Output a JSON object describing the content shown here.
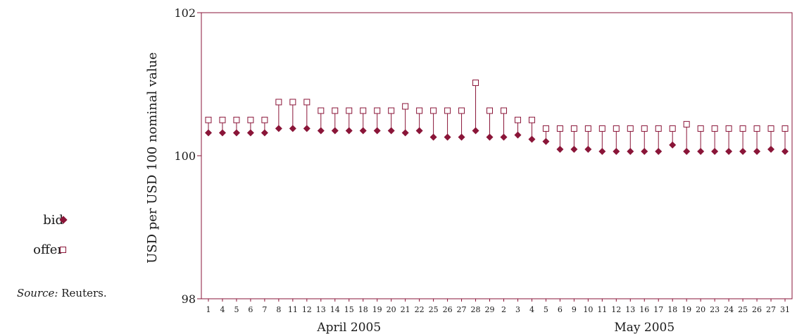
{
  "legend": {
    "bid_label": "bid",
    "offer_label": "offer"
  },
  "source": {
    "prefix": "Source:",
    "text": "Reuters."
  },
  "colors": {
    "series": "#8a1538",
    "axis": "#8a1538",
    "text": "#1a1a1a"
  },
  "chart_data": {
    "type": "scatter",
    "ylabel": "USD per USD 100 nominal value",
    "ylim": [
      98,
      102
    ],
    "yticks": [
      98,
      100,
      102
    ],
    "grid": false,
    "legend_position": "left",
    "categories": [
      "1",
      "4",
      "5",
      "6",
      "7",
      "8",
      "11",
      "12",
      "13",
      "14",
      "15",
      "18",
      "19",
      "20",
      "21",
      "22",
      "25",
      "26",
      "27",
      "28",
      "29",
      "2",
      "3",
      "4",
      "5",
      "6",
      "9",
      "10",
      "11",
      "12",
      "13",
      "16",
      "17",
      "18",
      "19",
      "20",
      "23",
      "24",
      "25",
      "26",
      "27",
      "31"
    ],
    "month_groups": [
      {
        "label": "April 2005",
        "start": 0,
        "end": 20
      },
      {
        "label": "May 2005",
        "start": 21,
        "end": 41
      }
    ],
    "series": [
      {
        "name": "bid",
        "marker": "diamond-filled",
        "values": [
          100.32,
          100.32,
          100.32,
          100.32,
          100.32,
          100.38,
          100.38,
          100.38,
          100.35,
          100.35,
          100.35,
          100.35,
          100.35,
          100.35,
          100.32,
          100.35,
          100.26,
          100.26,
          100.26,
          100.35,
          100.26,
          100.26,
          100.29,
          100.23,
          100.2,
          100.09,
          100.09,
          100.09,
          100.06,
          100.06,
          100.06,
          100.06,
          100.06,
          100.15,
          100.06,
          100.06,
          100.06,
          100.06,
          100.06,
          100.06,
          100.09,
          100.06
        ]
      },
      {
        "name": "offer",
        "marker": "square-open",
        "values": [
          100.5,
          100.5,
          100.5,
          100.5,
          100.5,
          100.75,
          100.75,
          100.75,
          100.63,
          100.63,
          100.63,
          100.63,
          100.63,
          100.63,
          100.69,
          100.63,
          100.63,
          100.63,
          100.63,
          101.02,
          100.63,
          100.63,
          100.5,
          100.5,
          100.38,
          100.38,
          100.38,
          100.38,
          100.38,
          100.38,
          100.38,
          100.38,
          100.38,
          100.38,
          100.44,
          100.38,
          100.38,
          100.38,
          100.38,
          100.38,
          100.38,
          100.38
        ]
      }
    ]
  }
}
